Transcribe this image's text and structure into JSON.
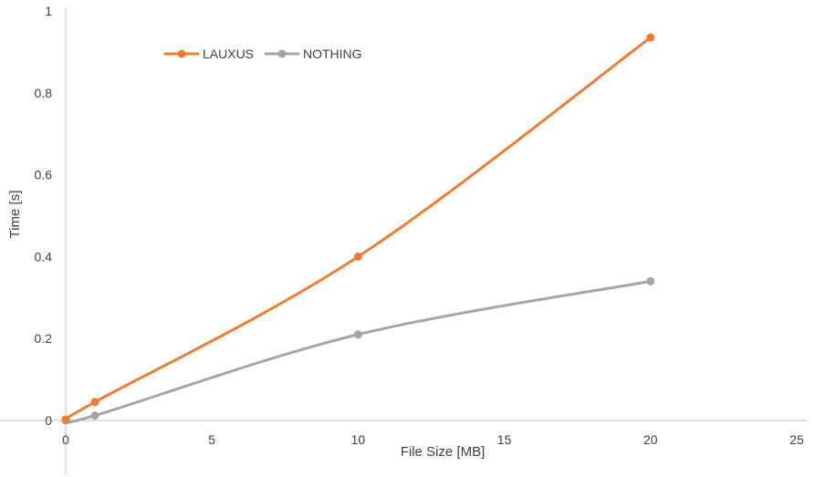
{
  "chart_data": {
    "type": "line",
    "title": "",
    "xlabel": "File Size [MB]",
    "ylabel": "Time [s]",
    "xlim": [
      0,
      25
    ],
    "ylim": [
      0,
      1
    ],
    "x_ticks": [
      0,
      5,
      10,
      15,
      20,
      25
    ],
    "y_ticks": [
      0,
      0.2,
      0.4,
      0.6,
      0.8,
      1
    ],
    "x_tick_labels": [
      "0",
      "5",
      "10",
      "15",
      "20",
      "25"
    ],
    "y_tick_labels": [
      "0",
      "0.2",
      "0.4",
      "0.6",
      "0.8",
      "1"
    ],
    "grid": false,
    "smooth": true,
    "legend_position": "top-left",
    "series": [
      {
        "name": "LAUXUS",
        "color": "#ED7D31",
        "x": [
          0,
          1,
          10,
          20
        ],
        "y": [
          0.002,
          0.045,
          0.4,
          0.935
        ]
      },
      {
        "name": "NOTHING",
        "color": "#A5A5A5",
        "x": [
          0,
          1,
          10,
          20
        ],
        "y": [
          0.002,
          0.012,
          0.21,
          0.34
        ]
      }
    ]
  }
}
